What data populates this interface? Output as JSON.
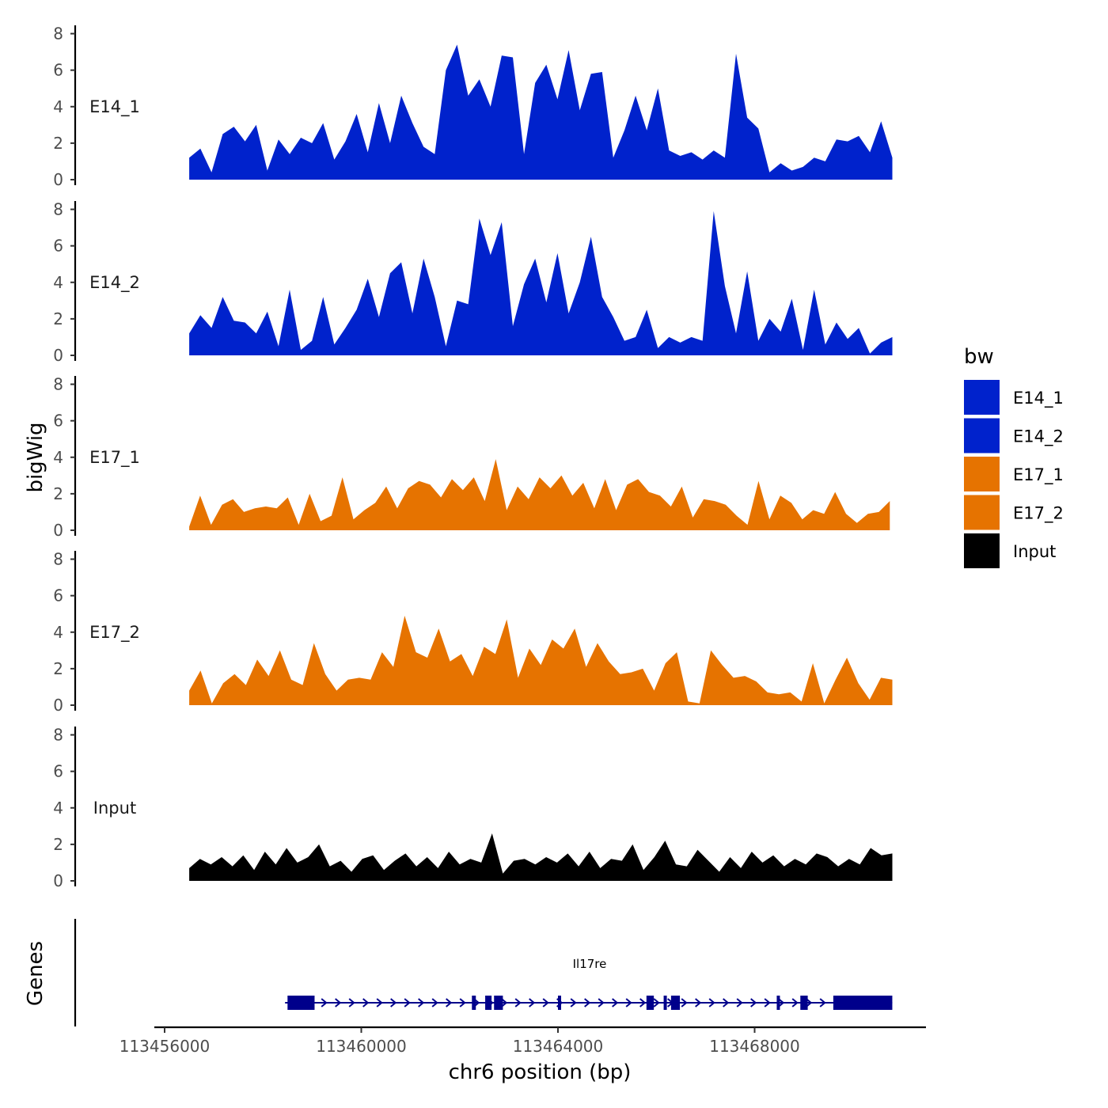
{
  "chart_data": {
    "type": "area",
    "ylabel": "bigWig",
    "xlabel": "chr6 position (bp)",
    "xlim": [
      113456000,
      113471000
    ],
    "ylim": [
      0,
      8.5
    ],
    "yticks": [
      0,
      2,
      4,
      6,
      8
    ],
    "xticks": [
      113456000,
      113460000,
      113464000,
      113468000
    ],
    "x_tick_labels": [
      "113456000",
      "113460000",
      "113464000",
      "113468000"
    ],
    "legend": {
      "title": "bw",
      "position": "right",
      "items": [
        {
          "name": "E14_1",
          "color": "#0022CC"
        },
        {
          "name": "E14_2",
          "color": "#0022CC"
        },
        {
          "name": "E17_1",
          "color": "#E67300"
        },
        {
          "name": "E17_2",
          "color": "#E67300"
        },
        {
          "name": "Input",
          "color": "#000000"
        }
      ]
    },
    "series": [
      {
        "name": "E14_1",
        "color": "#0022CC",
        "x_start": 113456500,
        "x_end": 113470800,
        "values": [
          1.2,
          1.7,
          0.4,
          2.5,
          2.9,
          2.1,
          3.0,
          0.5,
          2.2,
          1.4,
          2.3,
          2.0,
          3.1,
          1.1,
          2.1,
          3.6,
          1.5,
          4.2,
          2.0,
          4.6,
          3.1,
          1.8,
          1.4,
          6.0,
          7.4,
          4.6,
          5.5,
          4.0,
          6.8,
          6.7,
          1.4,
          5.3,
          6.3,
          4.4,
          7.1,
          3.8,
          5.8,
          5.9,
          1.2,
          2.7,
          4.6,
          2.7,
          5.0,
          1.6,
          1.3,
          1.5,
          1.1,
          1.6,
          1.2,
          6.9,
          3.4,
          2.8,
          0.4,
          0.9,
          0.5,
          0.7,
          1.2,
          1.0,
          2.2,
          2.1,
          2.4,
          1.5,
          3.2,
          1.2
        ]
      },
      {
        "name": "E14_2",
        "color": "#0022CC",
        "x_start": 113456500,
        "x_end": 113470800,
        "values": [
          1.2,
          2.2,
          1.5,
          3.2,
          1.9,
          1.8,
          1.2,
          2.4,
          0.5,
          3.6,
          0.3,
          0.8,
          3.2,
          0.6,
          1.5,
          2.5,
          4.2,
          2.1,
          4.5,
          5.1,
          2.3,
          5.3,
          3.2,
          0.5,
          3.0,
          2.8,
          7.5,
          5.5,
          7.3,
          1.6,
          3.9,
          5.3,
          2.9,
          5.6,
          2.3,
          4.0,
          6.5,
          3.2,
          2.1,
          0.8,
          1.0,
          2.5,
          0.4,
          1.0,
          0.7,
          1.0,
          0.8,
          7.9,
          3.8,
          1.2,
          4.6,
          0.8,
          2.0,
          1.3,
          3.1,
          0.3,
          3.6,
          0.6,
          1.8,
          0.9,
          1.5,
          0.1,
          0.7,
          1.0
        ]
      },
      {
        "name": "E17_1",
        "color": "#E67300",
        "x_start": 113456500,
        "x_end": 113470750,
        "values": [
          0.2,
          1.9,
          0.3,
          1.4,
          1.7,
          1.0,
          1.2,
          1.3,
          1.2,
          1.8,
          0.3,
          2.0,
          0.5,
          0.8,
          2.9,
          0.6,
          1.1,
          1.5,
          2.4,
          1.2,
          2.3,
          2.7,
          2.5,
          1.8,
          2.8,
          2.2,
          2.9,
          1.6,
          3.9,
          1.1,
          2.4,
          1.7,
          2.9,
          2.3,
          3.0,
          1.9,
          2.6,
          1.2,
          2.8,
          1.1,
          2.5,
          2.8,
          2.1,
          1.9,
          1.3,
          2.4,
          0.7,
          1.7,
          1.6,
          1.4,
          0.8,
          0.3,
          2.7,
          0.6,
          1.9,
          1.5,
          0.6,
          1.1,
          0.9,
          2.1,
          0.9,
          0.4,
          0.9,
          1.0,
          1.6
        ]
      },
      {
        "name": "E17_2",
        "color": "#E67300",
        "x_start": 113456500,
        "x_end": 113470800,
        "values": [
          0.8,
          1.9,
          0.1,
          1.2,
          1.7,
          1.1,
          2.5,
          1.6,
          3.0,
          1.4,
          1.1,
          3.4,
          1.7,
          0.8,
          1.4,
          1.5,
          1.4,
          2.9,
          2.1,
          4.9,
          2.9,
          2.6,
          4.2,
          2.4,
          2.8,
          1.6,
          3.2,
          2.8,
          4.7,
          1.5,
          3.1,
          2.2,
          3.6,
          3.1,
          4.2,
          2.1,
          3.4,
          2.4,
          1.7,
          1.8,
          2.0,
          0.8,
          2.3,
          2.9,
          0.2,
          0.1,
          3.0,
          2.2,
          1.5,
          1.6,
          1.3,
          0.7,
          0.6,
          0.7,
          0.2,
          2.3,
          0.1,
          1.4,
          2.6,
          1.2,
          0.3,
          1.5,
          1.4
        ]
      },
      {
        "name": "Input",
        "color": "#000000",
        "x_start": 113456500,
        "x_end": 113470800,
        "values": [
          0.7,
          1.2,
          0.9,
          1.3,
          0.8,
          1.4,
          0.6,
          1.6,
          0.9,
          1.8,
          1.0,
          1.3,
          2.0,
          0.8,
          1.1,
          0.5,
          1.2,
          1.4,
          0.6,
          1.1,
          1.5,
          0.8,
          1.3,
          0.7,
          1.6,
          0.9,
          1.2,
          1.0,
          2.6,
          0.4,
          1.1,
          1.2,
          0.9,
          1.3,
          1.0,
          1.5,
          0.8,
          1.6,
          0.7,
          1.2,
          1.1,
          2.0,
          0.6,
          1.3,
          2.2,
          0.9,
          0.8,
          1.7,
          1.1,
          0.5,
          1.3,
          0.7,
          1.6,
          1.0,
          1.4,
          0.8,
          1.2,
          0.9,
          1.5,
          1.3,
          0.8,
          1.2,
          0.9,
          1.8,
          1.4,
          1.5
        ]
      }
    ],
    "genes": {
      "track_label": "Genes",
      "name": "Il17re",
      "color": "#00008B",
      "strand": "+",
      "start": 113458450,
      "end": 113470800,
      "exons": [
        {
          "start": 113458500,
          "end": 113459050
        },
        {
          "start": 113462250,
          "end": 113462330
        },
        {
          "start": 113462520,
          "end": 113462650
        },
        {
          "start": 113462700,
          "end": 113462880
        },
        {
          "start": 113464000,
          "end": 113464060
        },
        {
          "start": 113465800,
          "end": 113465950
        },
        {
          "start": 113466150,
          "end": 113466200
        },
        {
          "start": 113466300,
          "end": 113466480
        },
        {
          "start": 113468450,
          "end": 113468510
        },
        {
          "start": 113468930,
          "end": 113469080
        },
        {
          "start": 113469600,
          "end": 113470800
        }
      ]
    }
  }
}
